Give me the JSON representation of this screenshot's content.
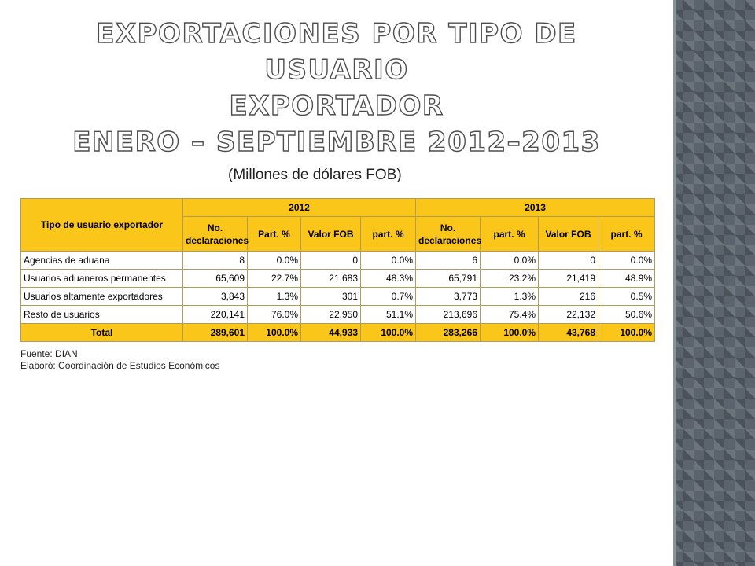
{
  "title": {
    "line1": "Exportaciones por tipo de usuario",
    "line2": "exportador",
    "line3": "Enero – Septiembre 2012–2013"
  },
  "subtitle": "(Millones de dólares FOB)",
  "table": {
    "row_header": "Tipo de usuario exportador",
    "years": [
      "2012",
      "2013"
    ],
    "columns": [
      "No. declaraciones",
      "Part. %",
      "Valor FOB",
      "part. %",
      "No. declaraciones",
      "part. %",
      "Valor FOB",
      "part. %"
    ],
    "rows": [
      {
        "label": "Agencias de aduana",
        "values": [
          "8",
          "0.0%",
          "0",
          "0.0%",
          "6",
          "0.0%",
          "0",
          "0.0%"
        ]
      },
      {
        "label": "Usuarios aduaneros permanentes",
        "values": [
          "65,609",
          "22.7%",
          "21,683",
          "48.3%",
          "65,791",
          "23.2%",
          "21,419",
          "48.9%"
        ]
      },
      {
        "label": "Usuarios altamente exportadores",
        "values": [
          "3,843",
          "1.3%",
          "301",
          "0.7%",
          "3,773",
          "1.3%",
          "216",
          "0.5%"
        ]
      },
      {
        "label": "Resto de usuarios",
        "values": [
          "220,141",
          "76.0%",
          "22,950",
          "51.1%",
          "213,696",
          "75.4%",
          "22,132",
          "50.6%"
        ]
      }
    ],
    "total": {
      "label": "Total",
      "values": [
        "289,601",
        "100.0%",
        "44,933",
        "100.0%",
        "283,266",
        "100.0%",
        "43,768",
        "100.0%"
      ]
    }
  },
  "notes": {
    "source": "Fuente: DIAN",
    "author": "Elaboró: Coordinación de Estudios Económicos"
  },
  "colors": {
    "header_fill": "#fbc61a",
    "sidebar": "#5b646c"
  }
}
